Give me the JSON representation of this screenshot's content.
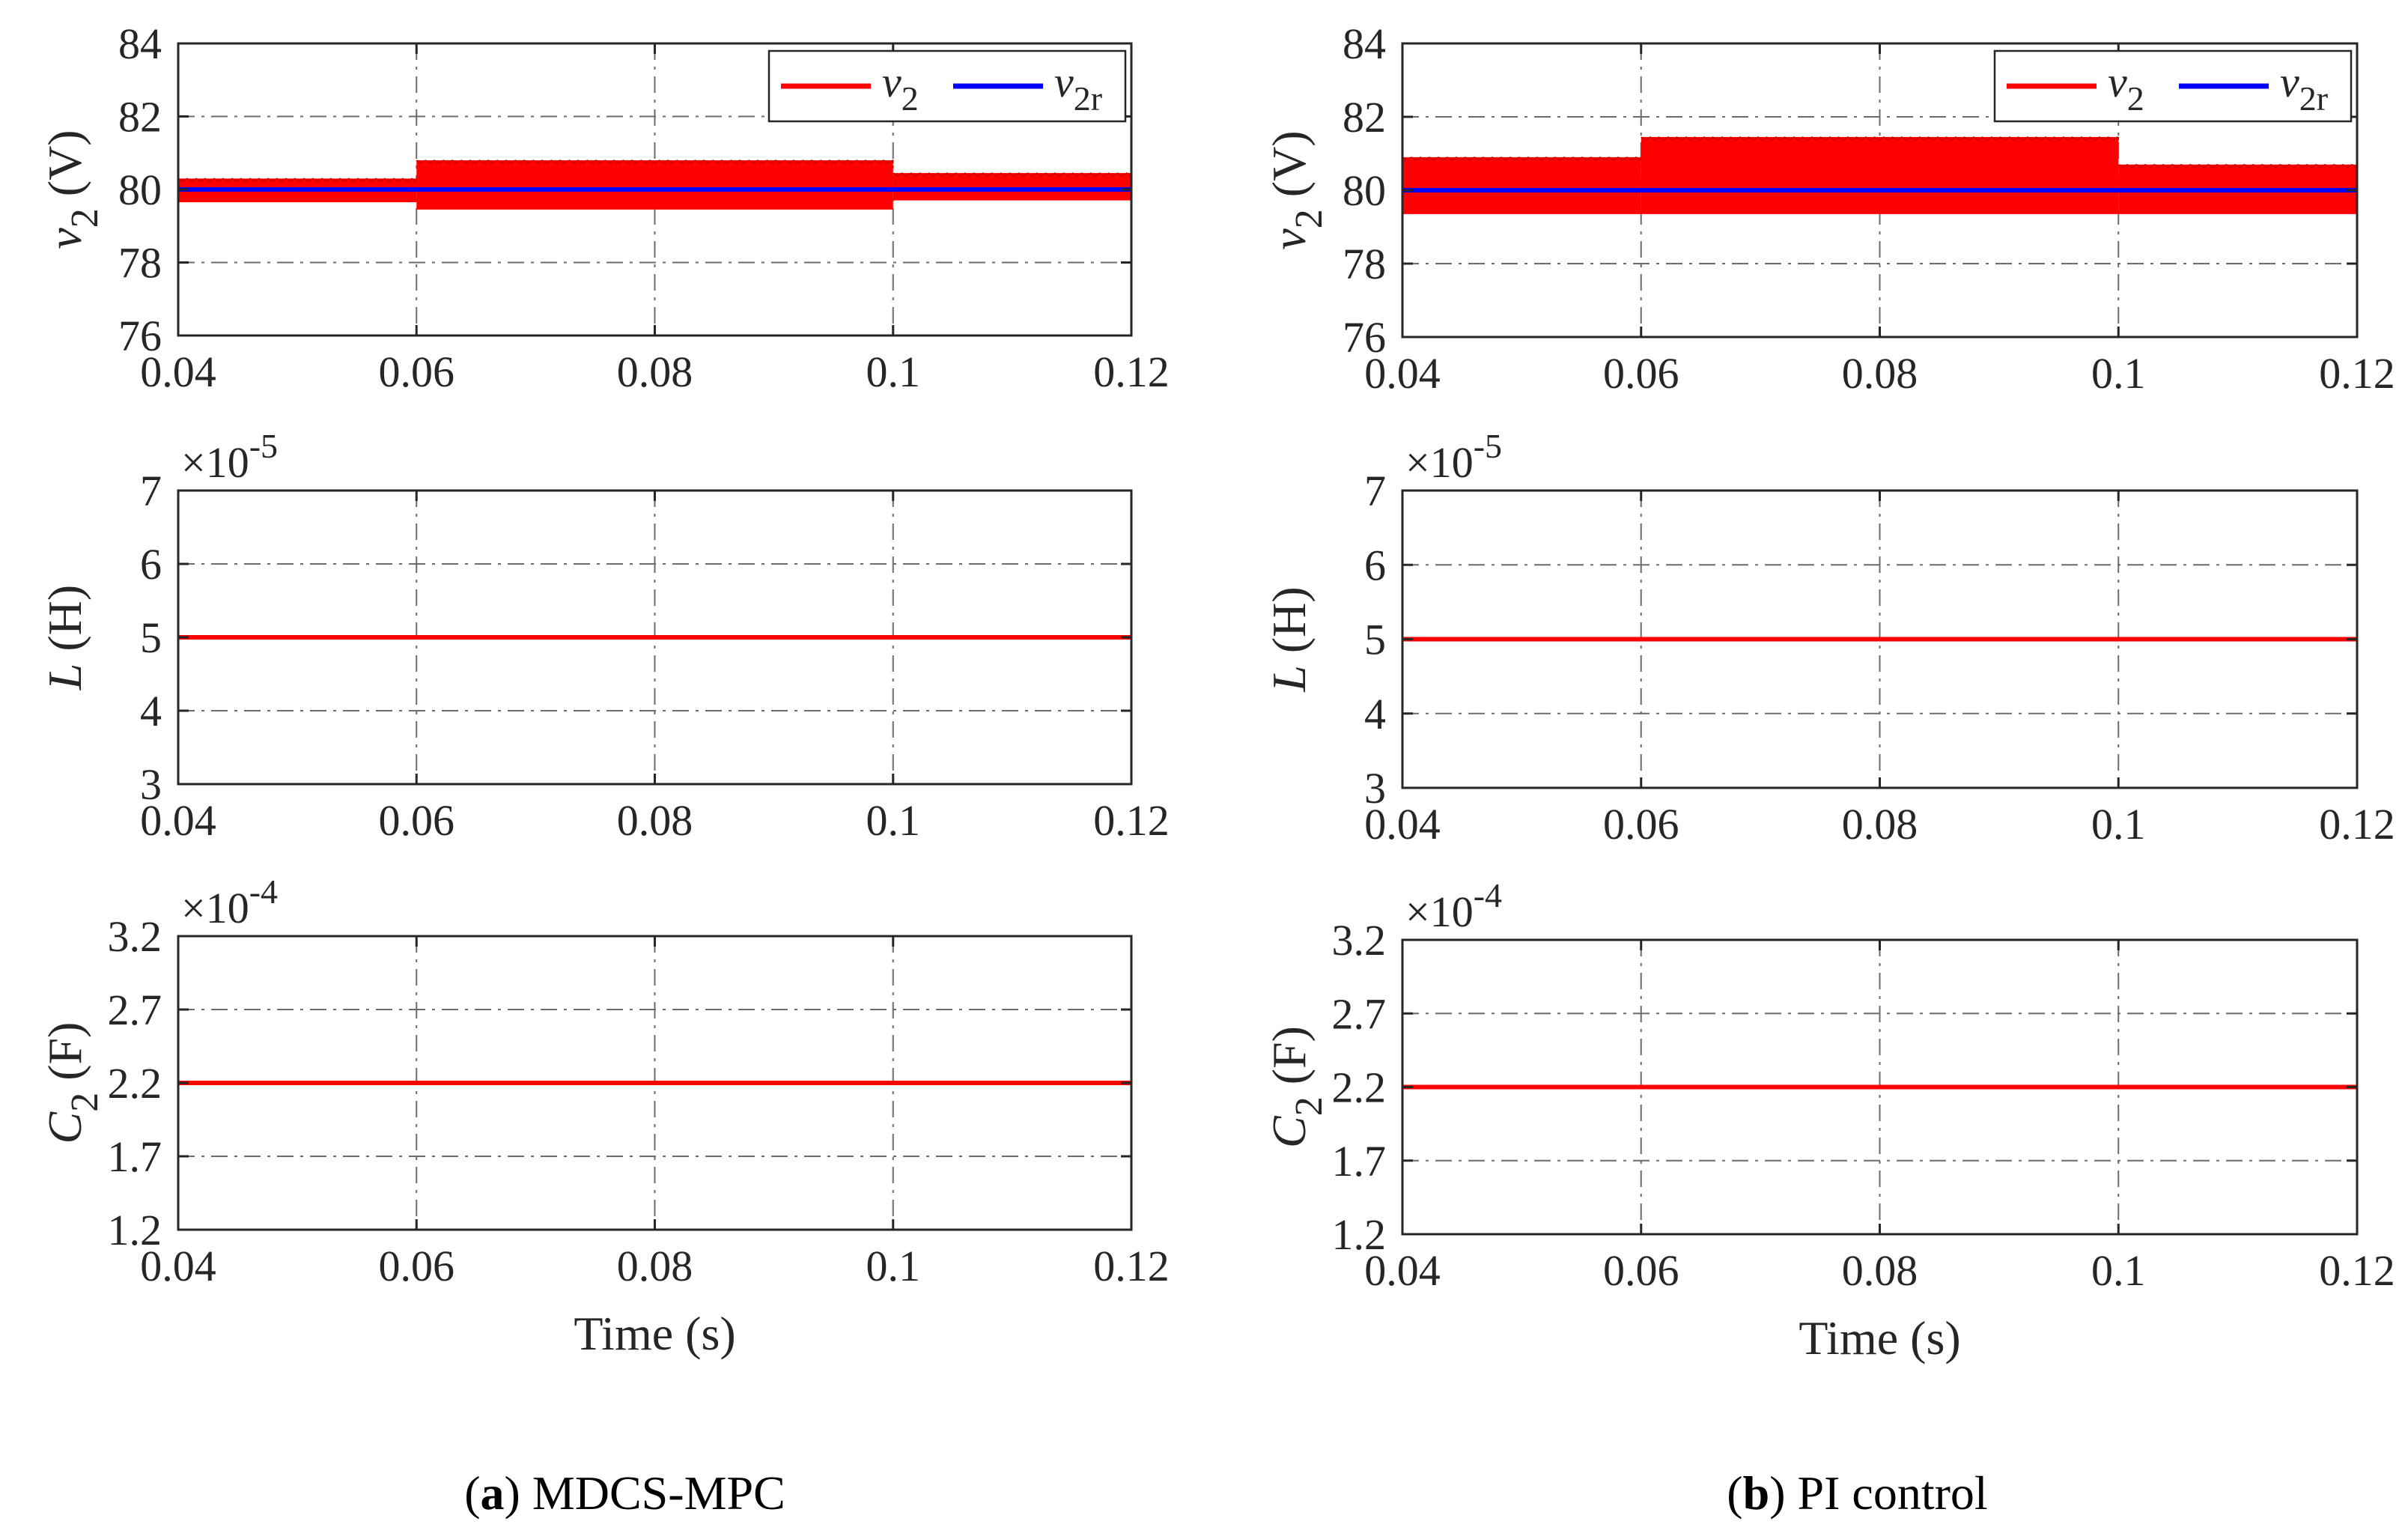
{
  "chart_data": [
    {
      "type": "line",
      "panel": "a",
      "title": "",
      "xlabel": "",
      "ylabel": "v_2 (V)",
      "ylabel_parts": {
        "sym": "v",
        "sub": "2",
        "unit": "(V)"
      },
      "xlim": [
        0.04,
        0.12
      ],
      "ylim": [
        76,
        84
      ],
      "xticks": [
        "0.04",
        "0.06",
        "0.08",
        "0.1",
        "0.12"
      ],
      "yticks": [
        "76",
        "78",
        "80",
        "82",
        "84"
      ],
      "grid": true,
      "legend": "top-right",
      "series": [
        {
          "name": "v_2",
          "legend_sym": "v",
          "legend_sub": "2",
          "color": "#ff0000",
          "band": true,
          "segments": [
            {
              "x": [
                0.04,
                0.06
              ],
              "low": 79.65,
              "high": 80.3
            },
            {
              "x": [
                0.06,
                0.1
              ],
              "low": 79.45,
              "high": 80.8
            },
            {
              "x": [
                0.1,
                0.12
              ],
              "low": 79.7,
              "high": 80.45
            }
          ]
        },
        {
          "name": "v_2r",
          "legend_sym": "v",
          "legend_sub": "2r",
          "color": "#0000ff",
          "x": [
            0.04,
            0.12
          ],
          "y": [
            80,
            80
          ]
        }
      ]
    },
    {
      "type": "line",
      "panel": "b",
      "title": "",
      "xlabel": "",
      "ylabel": "v_2 (V)",
      "ylabel_parts": {
        "sym": "v",
        "sub": "2",
        "unit": "(V)"
      },
      "xlim": [
        0.04,
        0.12
      ],
      "ylim": [
        76,
        84
      ],
      "xticks": [
        "0.04",
        "0.06",
        "0.08",
        "0.1",
        "0.12"
      ],
      "yticks": [
        "76",
        "78",
        "80",
        "82",
        "84"
      ],
      "grid": true,
      "legend": "top-right",
      "series": [
        {
          "name": "v_2",
          "legend_sym": "v",
          "legend_sub": "2",
          "color": "#ff0000",
          "band": true,
          "segments": [
            {
              "x": [
                0.04,
                0.06
              ],
              "low": 79.35,
              "high": 80.9
            },
            {
              "x": [
                0.06,
                0.1
              ],
              "low": 79.35,
              "high": 81.45
            },
            {
              "x": [
                0.1,
                0.12
              ],
              "low": 79.35,
              "high": 80.7
            }
          ]
        },
        {
          "name": "v_2r",
          "legend_sym": "v",
          "legend_sub": "2r",
          "color": "#0000ff",
          "x": [
            0.04,
            0.12
          ],
          "y": [
            80,
            80
          ]
        }
      ]
    },
    {
      "type": "line",
      "panel": "a",
      "title": "",
      "xlabel": "",
      "ylabel": "L (H)",
      "ylabel_parts": {
        "sym": "L",
        "sub": "",
        "unit": "(H)"
      },
      "scale_label": {
        "base": "×10",
        "exp": "-5"
      },
      "xlim": [
        0.04,
        0.12
      ],
      "ylim": [
        3,
        7
      ],
      "xticks": [
        "0.04",
        "0.06",
        "0.08",
        "0.1",
        "0.12"
      ],
      "yticks": [
        "3",
        "4",
        "5",
        "6",
        "7"
      ],
      "grid": true,
      "series": [
        {
          "name": "L",
          "color": "#ff0000",
          "x": [
            0.04,
            0.12
          ],
          "y": [
            5,
            5
          ]
        }
      ]
    },
    {
      "type": "line",
      "panel": "b",
      "title": "",
      "xlabel": "",
      "ylabel": "L (H)",
      "ylabel_parts": {
        "sym": "L",
        "sub": "",
        "unit": "(H)"
      },
      "scale_label": {
        "base": "×10",
        "exp": "-5"
      },
      "xlim": [
        0.04,
        0.12
      ],
      "ylim": [
        3,
        7
      ],
      "xticks": [
        "0.04",
        "0.06",
        "0.08",
        "0.1",
        "0.12"
      ],
      "yticks": [
        "3",
        "4",
        "5",
        "6",
        "7"
      ],
      "grid": true,
      "series": [
        {
          "name": "L",
          "color": "#ff0000",
          "x": [
            0.04,
            0.12
          ],
          "y": [
            5,
            5
          ]
        }
      ]
    },
    {
      "type": "line",
      "panel": "a",
      "title": "",
      "xlabel": "Time (s)",
      "ylabel": "C_2 (F)",
      "ylabel_parts": {
        "sym": "C",
        "sub": "2",
        "unit": "(F)"
      },
      "scale_label": {
        "base": "×10",
        "exp": "-4"
      },
      "xlim": [
        0.04,
        0.12
      ],
      "ylim": [
        1.2,
        3.2
      ],
      "xticks": [
        "0.04",
        "0.06",
        "0.08",
        "0.1",
        "0.12"
      ],
      "yticks": [
        "1.2",
        "1.7",
        "2.2",
        "2.7",
        "3.2"
      ],
      "grid": true,
      "series": [
        {
          "name": "C_2",
          "color": "#ff0000",
          "x": [
            0.04,
            0.12
          ],
          "y": [
            2.2,
            2.2
          ]
        }
      ]
    },
    {
      "type": "line",
      "panel": "b",
      "title": "",
      "xlabel": "Time (s)",
      "ylabel": "C_2 (F)",
      "ylabel_parts": {
        "sym": "C",
        "sub": "2",
        "unit": "(F)"
      },
      "scale_label": {
        "base": "×10",
        "exp": "-4"
      },
      "xlim": [
        0.04,
        0.12
      ],
      "ylim": [
        1.2,
        3.2
      ],
      "xticks": [
        "0.04",
        "0.06",
        "0.08",
        "0.1",
        "0.12"
      ],
      "yticks": [
        "1.2",
        "1.7",
        "2.2",
        "2.7",
        "3.2"
      ],
      "grid": true,
      "series": [
        {
          "name": "C_2",
          "color": "#ff0000",
          "x": [
            0.04,
            0.12
          ],
          "y": [
            2.2,
            2.2
          ]
        }
      ]
    }
  ],
  "captions": [
    {
      "letter": "a",
      "text": " MDCS-MPC"
    },
    {
      "letter": "b",
      "text": " PI control"
    }
  ]
}
